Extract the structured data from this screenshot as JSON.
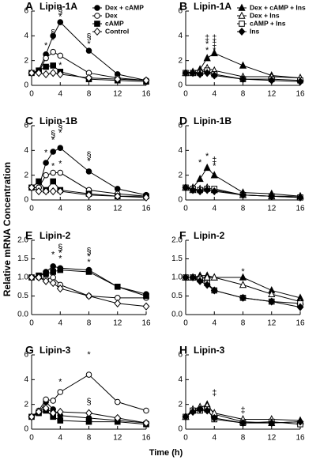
{
  "y_label": "Relative mRNA Concentration",
  "x_label": "Time (h)",
  "chart_data": [
    {
      "type": "line",
      "label": "A",
      "title": "Lipin-1A",
      "x": [
        0,
        1,
        2,
        3,
        4,
        8,
        12,
        16
      ],
      "xlim": [
        0,
        16
      ],
      "xticks": [
        0,
        4,
        8,
        12,
        16
      ],
      "ylim": [
        0,
        6
      ],
      "yticks": [
        0,
        2,
        4,
        6
      ],
      "legend": "upper right",
      "series": [
        {
          "name": "Dex + cAMP",
          "marker": "circle-filled",
          "color": "#000000",
          "values": [
            1.0,
            1.2,
            2.5,
            4.0,
            5.1,
            2.8,
            0.9,
            0.4
          ]
        },
        {
          "name": "Dex",
          "marker": "circle-open",
          "color": "#000000",
          "values": [
            1.0,
            1.1,
            2.2,
            2.7,
            2.4,
            1.0,
            0.6,
            0.4
          ]
        },
        {
          "name": "cAMP",
          "marker": "square-filled",
          "color": "#000000",
          "values": [
            1.0,
            1.2,
            1.5,
            1.6,
            1.1,
            0.5,
            0.4,
            0.3
          ]
        },
        {
          "name": "Control",
          "marker": "diamond-open",
          "color": "#000000",
          "values": [
            1.0,
            1.0,
            0.9,
            1.0,
            0.9,
            0.6,
            0.5,
            0.4
          ]
        }
      ],
      "annotations": [
        {
          "x": 2,
          "y": 3.2,
          "text": "*"
        },
        {
          "x": 3,
          "y": 4.2,
          "text": "§"
        },
        {
          "x": 3,
          "y": 3.6,
          "text": "*"
        },
        {
          "x": 4,
          "y": 6.0,
          "text": "§"
        },
        {
          "x": 4,
          "y": 5.5,
          "text": "*"
        },
        {
          "x": 4,
          "y": 1.6,
          "text": "*"
        },
        {
          "x": 8,
          "y": 3.9,
          "text": "§"
        },
        {
          "x": 8,
          "y": 3.3,
          "text": "*"
        }
      ]
    },
    {
      "type": "line",
      "label": "B",
      "title": "Lipin-1A",
      "x": [
        0,
        1,
        2,
        3,
        4,
        8,
        12,
        16
      ],
      "xlim": [
        0,
        16
      ],
      "xticks": [
        0,
        4,
        8,
        12,
        16
      ],
      "ylim": [
        0,
        6
      ],
      "yticks": [
        0,
        2,
        4,
        6
      ],
      "legend": "upper right",
      "series": [
        {
          "name": "Dex + cAMP + Ins",
          "marker": "triangle-filled",
          "color": "#000000",
          "values": [
            1.0,
            1.1,
            1.3,
            2.2,
            2.6,
            1.6,
            0.8,
            0.6
          ]
        },
        {
          "name": "Dex + Ins",
          "marker": "triangle-open",
          "color": "#000000",
          "values": [
            1.0,
            1.0,
            1.1,
            1.4,
            1.2,
            0.7,
            0.7,
            0.6
          ]
        },
        {
          "name": "cAMP + Ins",
          "marker": "square-open",
          "color": "#000000",
          "values": [
            1.0,
            1.0,
            1.0,
            1.2,
            0.9,
            0.5,
            0.5,
            0.4
          ]
        },
        {
          "name": "Ins",
          "marker": "diamond-filled",
          "color": "#000000",
          "values": [
            1.0,
            1.0,
            0.9,
            1.0,
            0.8,
            0.5,
            0.4,
            0.3
          ]
        }
      ],
      "annotations": [
        {
          "x": 3,
          "y": 3.8,
          "text": "‡"
        },
        {
          "x": 3,
          "y": 3.3,
          "text": "*"
        },
        {
          "x": 3,
          "y": 2.8,
          "text": "*"
        },
        {
          "x": 4,
          "y": 3.8,
          "text": "‡"
        },
        {
          "x": 4,
          "y": 3.3,
          "text": "‡"
        },
        {
          "x": 4,
          "y": 2.8,
          "text": "*"
        }
      ]
    },
    {
      "type": "line",
      "label": "C",
      "title": "Lipin-1B",
      "x": [
        0,
        1,
        2,
        3,
        4,
        8,
        12,
        16
      ],
      "xlim": [
        0,
        16
      ],
      "xticks": [
        0,
        4,
        8,
        12,
        16
      ],
      "ylim": [
        0,
        6
      ],
      "yticks": [
        0,
        2,
        4,
        6
      ],
      "series": [
        {
          "marker": "circle-filled",
          "color": "#000000",
          "values": [
            1.0,
            1.0,
            3.0,
            3.9,
            4.2,
            2.3,
            0.9,
            0.4
          ]
        },
        {
          "marker": "circle-open",
          "color": "#000000",
          "values": [
            1.0,
            1.0,
            2.0,
            2.2,
            2.2,
            0.8,
            0.5,
            0.3
          ]
        },
        {
          "marker": "square-filled",
          "color": "#000000",
          "values": [
            1.0,
            1.5,
            0.8,
            1.5,
            0.8,
            0.5,
            0.3,
            0.3
          ]
        },
        {
          "marker": "diamond-open",
          "color": "#000000",
          "values": [
            1.0,
            0.7,
            0.7,
            0.7,
            0.7,
            0.4,
            0.3,
            0.2
          ]
        }
      ],
      "annotations": [
        {
          "x": 2,
          "y": 3.8,
          "text": "*"
        },
        {
          "x": 3,
          "y": 5.3,
          "text": "§"
        },
        {
          "x": 3,
          "y": 4.8,
          "text": "*"
        },
        {
          "x": 3,
          "y": 2.7,
          "text": "*"
        },
        {
          "x": 4,
          "y": 5.9,
          "text": "§"
        },
        {
          "x": 4,
          "y": 5.4,
          "text": "*"
        },
        {
          "x": 4,
          "y": 2.9,
          "text": "*"
        },
        {
          "x": 8,
          "y": 3.6,
          "text": "§"
        },
        {
          "x": 8,
          "y": 3.1,
          "text": "*"
        }
      ]
    },
    {
      "type": "line",
      "label": "D",
      "title": "Lipin-1B",
      "x": [
        0,
        1,
        2,
        3,
        4,
        8,
        12,
        16
      ],
      "xlim": [
        0,
        16
      ],
      "xticks": [
        0,
        4,
        8,
        12,
        16
      ],
      "ylim": [
        0,
        6
      ],
      "yticks": [
        0,
        2,
        4,
        6
      ],
      "series": [
        {
          "marker": "triangle-filled",
          "color": "#000000",
          "values": [
            1.0,
            1.0,
            1.7,
            2.6,
            2.0,
            0.6,
            0.5,
            0.3
          ]
        },
        {
          "marker": "triangle-open",
          "color": "#000000",
          "values": [
            1.0,
            0.8,
            0.9,
            1.0,
            0.8,
            0.4,
            0.3,
            0.3
          ]
        },
        {
          "marker": "square-open",
          "color": "#000000",
          "values": [
            1.0,
            0.9,
            0.8,
            0.9,
            0.9,
            0.4,
            0.3,
            0.2
          ]
        },
        {
          "marker": "diamond-filled",
          "color": "#000000",
          "values": [
            1.0,
            0.8,
            0.7,
            0.8,
            0.7,
            0.4,
            0.3,
            0.2
          ]
        }
      ],
      "annotations": [
        {
          "x": 2,
          "y": 3.0,
          "text": "*"
        },
        {
          "x": 3,
          "y": 3.5,
          "text": "*"
        },
        {
          "x": 4,
          "y": 3.2,
          "text": "‡"
        },
        {
          "x": 4,
          "y": 2.7,
          "text": "*"
        }
      ]
    },
    {
      "type": "line",
      "label": "E",
      "title": "Lipin-2",
      "x": [
        0,
        1,
        2,
        3,
        4,
        8,
        12,
        16
      ],
      "xlim": [
        0,
        16
      ],
      "xticks": [
        0,
        4,
        8,
        12,
        16
      ],
      "ylim": [
        0,
        2
      ],
      "yticks": [
        {
          "value": 0,
          "label": "0.0"
        },
        0.5,
        {
          "value": 1,
          "label": "1.0"
        },
        1.5,
        {
          "value": 2,
          "label": "2.0"
        }
      ],
      "series": [
        {
          "marker": "circle-filled",
          "color": "#000000",
          "values": [
            1.0,
            1.05,
            1.15,
            1.3,
            1.25,
            1.2,
            0.75,
            0.55
          ]
        },
        {
          "marker": "circle-open",
          "color": "#000000",
          "values": [
            1.0,
            1.0,
            0.95,
            1.0,
            0.8,
            0.5,
            0.45,
            0.45
          ]
        },
        {
          "marker": "square-filled",
          "color": "#000000",
          "values": [
            1.0,
            1.05,
            1.1,
            1.15,
            1.2,
            1.15,
            0.75,
            0.5
          ]
        },
        {
          "marker": "diamond-open",
          "color": "#000000",
          "values": [
            1.0,
            1.0,
            0.9,
            0.85,
            0.7,
            0.5,
            0.3,
            0.22
          ]
        }
      ],
      "annotations": [
        {
          "x": 3,
          "y": 1.6,
          "text": "*"
        },
        {
          "x": 4,
          "y": 1.8,
          "text": "§"
        },
        {
          "x": 4,
          "y": 1.65,
          "text": "*"
        },
        {
          "x": 4,
          "y": 1.5,
          "text": "*"
        },
        {
          "x": 8,
          "y": 1.7,
          "text": "§"
        },
        {
          "x": 8,
          "y": 1.55,
          "text": "*"
        },
        {
          "x": 8,
          "y": 1.4,
          "text": "*"
        }
      ]
    },
    {
      "type": "line",
      "label": "F",
      "title": "Lipin-2",
      "x": [
        0,
        1,
        2,
        3,
        4,
        8,
        12,
        16
      ],
      "xlim": [
        0,
        16
      ],
      "xticks": [
        0,
        4,
        8,
        12,
        16
      ],
      "ylim": [
        0,
        2
      ],
      "yticks": [
        {
          "value": 0,
          "label": "0.0"
        },
        0.5,
        {
          "value": 1,
          "label": "1.0"
        },
        1.5,
        {
          "value": 2,
          "label": "2.0"
        }
      ],
      "series": [
        {
          "marker": "triangle-filled",
          "color": "#000000",
          "values": [
            1.0,
            1.0,
            1.05,
            1.05,
            1.0,
            1.0,
            0.65,
            0.45
          ]
        },
        {
          "marker": "triangle-open",
          "color": "#000000",
          "values": [
            1.0,
            1.0,
            1.0,
            1.0,
            1.0,
            0.8,
            0.55,
            0.35
          ]
        },
        {
          "marker": "square-open",
          "color": "#000000",
          "values": [
            1.0,
            1.0,
            0.95,
            0.85,
            0.65,
            0.45,
            0.35,
            0.3
          ]
        },
        {
          "marker": "diamond-filled",
          "color": "#000000",
          "values": [
            1.0,
            1.0,
            0.9,
            0.8,
            0.65,
            0.45,
            0.35,
            0.2
          ]
        }
      ],
      "annotations": [
        {
          "x": 8,
          "y": 1.15,
          "text": "*"
        }
      ]
    },
    {
      "type": "line",
      "label": "G",
      "title": "Lipin-3",
      "x": [
        0,
        1,
        2,
        3,
        4,
        8,
        12,
        16
      ],
      "xlim": [
        0,
        16
      ],
      "xticks": [
        0,
        4,
        8,
        12,
        16
      ],
      "ylim": [
        0,
        6
      ],
      "yticks": [
        0,
        2,
        4,
        6
      ],
      "series": [
        {
          "marker": "circle-filled",
          "color": "#000000",
          "values": [
            1.0,
            1.3,
            2.2,
            1.6,
            1.1,
            0.9,
            0.7,
            0.5
          ]
        },
        {
          "marker": "circle-open",
          "color": "#000000",
          "values": [
            1.0,
            1.5,
            2.4,
            2.3,
            3.0,
            4.4,
            2.2,
            1.5
          ]
        },
        {
          "marker": "square-filled",
          "color": "#000000",
          "values": [
            1.0,
            1.3,
            1.5,
            1.0,
            0.7,
            0.6,
            0.6,
            0.4
          ]
        },
        {
          "marker": "diamond-open",
          "color": "#000000",
          "values": [
            1.0,
            1.4,
            1.7,
            1.3,
            1.4,
            1.3,
            0.9,
            0.5
          ]
        }
      ],
      "annotations": [
        {
          "x": 4,
          "y": 3.8,
          "text": "*"
        },
        {
          "x": 8,
          "y": 6.0,
          "text": "*"
        },
        {
          "x": 8,
          "y": 2.2,
          "text": "§"
        }
      ]
    },
    {
      "type": "line",
      "label": "H",
      "title": "Lipin-3",
      "x": [
        0,
        1,
        2,
        3,
        4,
        8,
        12,
        16
      ],
      "xlim": [
        0,
        16
      ],
      "xticks": [
        0,
        4,
        8,
        12,
        16
      ],
      "ylim": [
        0,
        6
      ],
      "yticks": [
        0,
        2,
        4,
        6
      ],
      "series": [
        {
          "marker": "triangle-filled",
          "color": "#000000",
          "values": [
            1.0,
            1.5,
            1.7,
            2.0,
            1.2,
            0.6,
            0.5,
            0.6
          ]
        },
        {
          "marker": "triangle-open",
          "color": "#000000",
          "values": [
            1.0,
            1.6,
            1.8,
            1.9,
            1.3,
            0.8,
            0.8,
            0.7
          ]
        },
        {
          "marker": "square-open",
          "color": "#000000",
          "values": [
            1.0,
            1.5,
            1.5,
            1.6,
            0.8,
            0.5,
            0.6,
            0.4
          ]
        },
        {
          "marker": "diamond-filled",
          "color": "#000000",
          "values": [
            1.0,
            1.4,
            1.6,
            1.5,
            0.9,
            0.5,
            0.5,
            0.6
          ]
        }
      ],
      "annotations": [
        {
          "x": 4,
          "y": 2.9,
          "text": "‡"
        },
        {
          "x": 8,
          "y": 1.5,
          "text": "‡"
        }
      ]
    }
  ]
}
